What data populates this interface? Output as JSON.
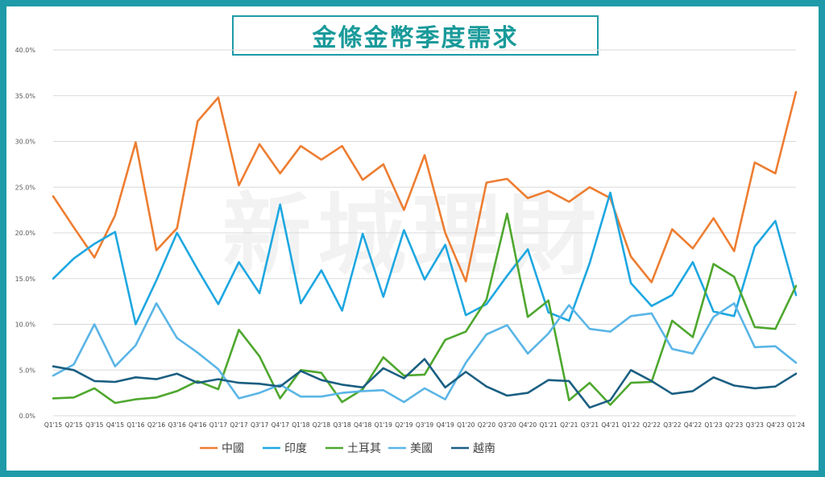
{
  "title": "金條金幣季度需求",
  "watermark": "新城理財",
  "chart_data": {
    "type": "line",
    "title": "金條金幣季度需求",
    "categories": [
      "Q1'15",
      "Q2'15",
      "Q3'15",
      "Q4'15",
      "Q1'16",
      "Q2'16",
      "Q3'16",
      "Q4'16",
      "Q1'17",
      "Q2'17",
      "Q3'17",
      "Q4'17",
      "Q1'18",
      "Q2'18",
      "Q3'18",
      "Q4'18",
      "Q1'19",
      "Q2'19",
      "Q3'19",
      "Q4'19",
      "Q1'20",
      "Q2'20",
      "Q3'20",
      "Q4'20",
      "Q1'21",
      "Q2'21",
      "Q3'21",
      "Q4'21",
      "Q1'22",
      "Q2'22",
      "Q3'22",
      "Q4'22",
      "Q1'23",
      "Q2'23",
      "Q3'23",
      "Q4'23",
      "Q1'24"
    ],
    "y_ticks": [
      "0.0%",
      "5.0%",
      "10.0%",
      "15.0%",
      "20.0%",
      "25.0%",
      "30.0%",
      "35.0%",
      "40.0%"
    ],
    "ylim": [
      0,
      40
    ],
    "grid": true,
    "legend_position": "bottom",
    "series": [
      {
        "name": "中國",
        "color": "#ed7d31",
        "values": [
          24.0,
          20.6,
          17.3,
          21.9,
          29.9,
          18.1,
          20.5,
          32.2,
          34.8,
          25.2,
          29.7,
          26.5,
          29.5,
          28.0,
          29.5,
          25.8,
          27.5,
          22.5,
          28.5,
          20.0,
          14.7,
          25.5,
          25.9,
          23.8,
          24.6,
          23.4,
          25.0,
          23.8,
          17.4,
          14.6,
          20.4,
          18.3,
          21.6,
          18.0,
          27.7,
          26.5,
          35.4
        ]
      },
      {
        "name": "印度",
        "color": "#1ea7e1",
        "values": [
          15.0,
          17.2,
          18.8,
          20.1,
          10.0,
          14.8,
          20.0,
          16.0,
          12.2,
          16.8,
          13.4,
          23.1,
          12.3,
          15.9,
          11.5,
          19.9,
          13.0,
          20.3,
          14.9,
          18.7,
          11.0,
          12.2,
          15.3,
          18.2,
          11.3,
          10.4,
          16.7,
          24.4,
          14.5,
          12.0,
          13.2,
          16.8,
          11.4,
          10.9,
          18.5,
          21.3,
          13.2
        ]
      },
      {
        "name": "土耳其",
        "color": "#4ea72e",
        "values": [
          1.9,
          2.0,
          3.0,
          1.4,
          1.8,
          2.0,
          2.7,
          3.8,
          2.9,
          9.4,
          6.5,
          1.9,
          5.0,
          4.7,
          1.5,
          2.9,
          6.4,
          4.4,
          4.5,
          8.3,
          9.2,
          12.7,
          22.1,
          10.8,
          12.6,
          1.7,
          3.6,
          1.2,
          3.6,
          3.7,
          10.4,
          8.6,
          16.6,
          15.2,
          9.7,
          9.5,
          14.2
        ]
      },
      {
        "name": "美國",
        "color": "#5ab5e6",
        "values": [
          4.4,
          5.6,
          10.0,
          5.4,
          7.7,
          12.3,
          8.5,
          6.9,
          5.1,
          1.9,
          2.5,
          3.4,
          2.1,
          2.1,
          2.5,
          2.7,
          2.8,
          1.5,
          3.0,
          1.8,
          5.8,
          8.9,
          9.9,
          6.8,
          9.0,
          12.1,
          9.5,
          9.2,
          10.9,
          11.2,
          7.3,
          6.8,
          10.8,
          12.3,
          7.5,
          7.6,
          5.8
        ]
      },
      {
        "name": "越南",
        "color": "#1b5f82",
        "values": [
          5.4,
          5.0,
          3.8,
          3.7,
          4.2,
          4.0,
          4.6,
          3.6,
          4.0,
          3.6,
          3.5,
          3.2,
          4.9,
          3.9,
          3.4,
          3.1,
          5.2,
          4.1,
          6.2,
          3.1,
          4.8,
          3.2,
          2.2,
          2.5,
          3.9,
          3.8,
          0.9,
          1.7,
          5.0,
          3.8,
          2.4,
          2.7,
          4.2,
          3.3,
          3.0,
          3.2,
          4.6
        ]
      }
    ]
  }
}
